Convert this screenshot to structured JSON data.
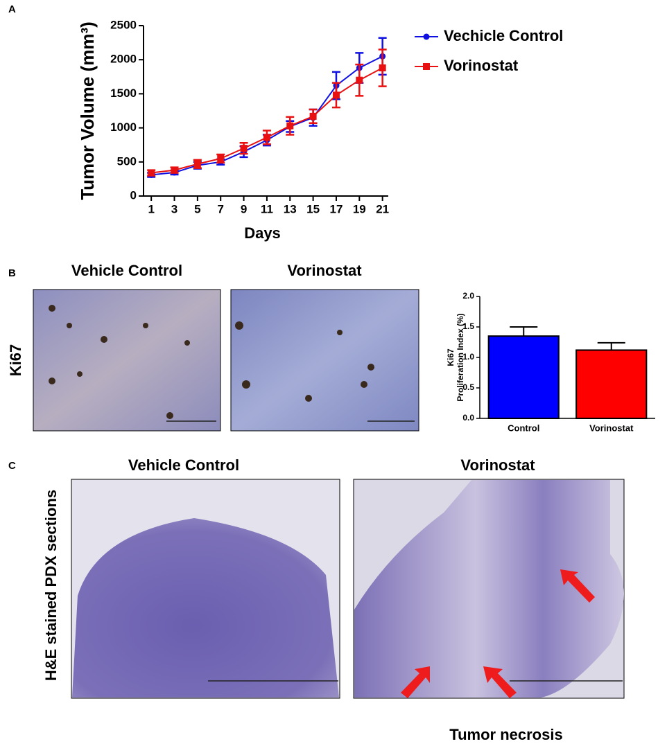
{
  "panels": [
    "A",
    "B",
    "C"
  ],
  "panel_b": {
    "titles": [
      "Vehicle Control",
      "Vorinostat"
    ],
    "row_label": "Ki67"
  },
  "panel_c": {
    "titles": [
      "Vehicle Control",
      "Vorinostat"
    ],
    "row_label": "H&E stained PDX sections",
    "annotation": "Tumor necrosis"
  },
  "chart_data": [
    {
      "type": "line",
      "xlabel": "Days",
      "ylabel": "Tumor  Volume (mm³)",
      "x": [
        1,
        3,
        5,
        7,
        9,
        11,
        13,
        15,
        17,
        19,
        21
      ],
      "xlim": [
        0.33,
        21.5
      ],
      "xticks": [
        1,
        3,
        5,
        7,
        9,
        11,
        13,
        15,
        17,
        19,
        21
      ],
      "ylim": [
        0,
        2500
      ],
      "yticks": [
        0,
        500,
        1000,
        1500,
        2000,
        2500
      ],
      "series": [
        {
          "name": "Vechicle Control",
          "color": "#1010e0",
          "marker": "circle",
          "values": [
            310,
            345,
            450,
            500,
            650,
            820,
            1020,
            1150,
            1620,
            1880,
            2050
          ],
          "errors": [
            30,
            30,
            50,
            40,
            80,
            80,
            80,
            120,
            200,
            220,
            270
          ]
        },
        {
          "name": "Vorinostat",
          "color": "#e81010",
          "marker": "square",
          "values": [
            340,
            380,
            470,
            550,
            700,
            860,
            1030,
            1170,
            1480,
            1700,
            1880
          ],
          "errors": [
            40,
            40,
            60,
            60,
            80,
            100,
            130,
            100,
            180,
            230,
            270
          ]
        }
      ]
    },
    {
      "type": "bar",
      "ylabel": [
        "Ki67",
        "Proliferation Index (%)"
      ],
      "categories": [
        "Control",
        "Vorinostat"
      ],
      "values": [
        1.35,
        1.12
      ],
      "errors": [
        0.15,
        0.12
      ],
      "colors": [
        "#0000ff",
        "#ff0000"
      ],
      "ylim": [
        0,
        2
      ],
      "yticks": [
        {
          "value": 0,
          "label": "0.0"
        },
        0.5,
        {
          "value": 1,
          "label": "1.0"
        },
        1.5,
        {
          "value": 2,
          "label": "2.0"
        }
      ]
    }
  ]
}
